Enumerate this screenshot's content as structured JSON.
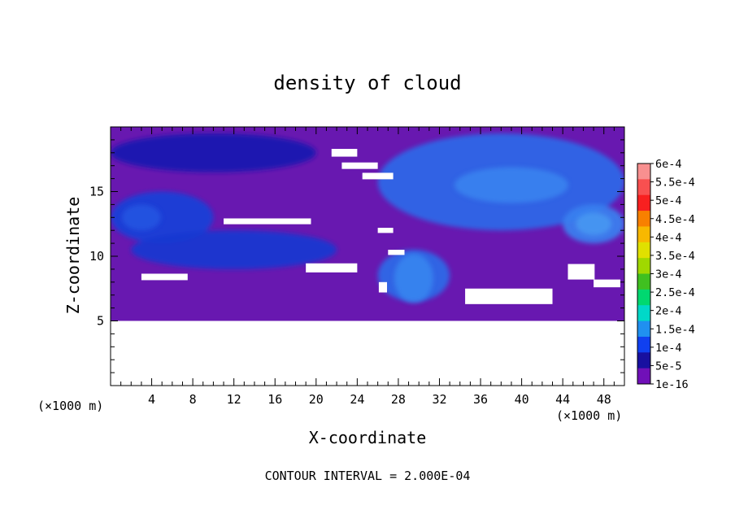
{
  "chart_data": {
    "type": "heatmap",
    "title": "density of cloud",
    "xlabel": "X-coordinate",
    "ylabel": "Z-coordinate",
    "x_unit_label": "(×1000 m)",
    "y_unit_label": "(×1000 m)",
    "xlim": [
      0,
      50
    ],
    "ylim": [
      0,
      20
    ],
    "x_ticks": [
      "4",
      "8",
      "12",
      "16",
      "20",
      "24",
      "28",
      "32",
      "36",
      "40",
      "44",
      "48"
    ],
    "x_tick_values": [
      4,
      8,
      12,
      16,
      20,
      24,
      28,
      32,
      36,
      40,
      44,
      48
    ],
    "y_ticks": [
      "5",
      "10",
      "15"
    ],
    "y_tick_values": [
      5,
      10,
      15
    ],
    "footer": "CONTOUR INTERVAL = 2.000E-04",
    "colorbar": {
      "labels": [
        "6e-4",
        "5.5e-4",
        "5e-4",
        "4.5e-4",
        "4e-4",
        "3.5e-4",
        "3e-4",
        "2.5e-4",
        "2e-4",
        "1.5e-4",
        "1e-4",
        "5e-5",
        "1e-16"
      ],
      "colors": [
        "#f89090",
        "#f85050",
        "#f82020",
        "#f88000",
        "#f8b800",
        "#e0e000",
        "#a0d800",
        "#40c020",
        "#00d870",
        "#00d8c8",
        "#2090f0",
        "#1040f0",
        "#1810a0",
        "#7010b8"
      ]
    },
    "regions": {
      "background_level": "1e-16",
      "background_color": "#6818b0",
      "blank_below_z": 5,
      "features": [
        {
          "name": "upper-left cloud band",
          "x": [
            0,
            20
          ],
          "z": [
            16.5,
            19.5
          ],
          "level": "5e-5",
          "color": "#1a1ab0"
        },
        {
          "name": "mid-left cloud band",
          "x": [
            0,
            10
          ],
          "z": [
            11,
            15
          ],
          "level": "5e-5",
          "color": "#1a40d8"
        },
        {
          "name": "lower-left cloud",
          "x": [
            2,
            22
          ],
          "z": [
            9,
            12
          ],
          "level": "5e-5",
          "color": "#1838d0"
        },
        {
          "name": "central convective cell",
          "x": [
            26,
            33
          ],
          "z": [
            6.5,
            10.5
          ],
          "level": "1e-4",
          "color": "#2a6ae8"
        },
        {
          "name": "upper-right cloud",
          "x": [
            26,
            50
          ],
          "z": [
            12,
            19.5
          ],
          "level": "1e-4",
          "color": "#2a68e8"
        },
        {
          "name": "right cloud band",
          "x": [
            44,
            50
          ],
          "z": [
            11,
            14
          ],
          "level": "1e-4",
          "color": "#3a80f0"
        }
      ]
    }
  }
}
